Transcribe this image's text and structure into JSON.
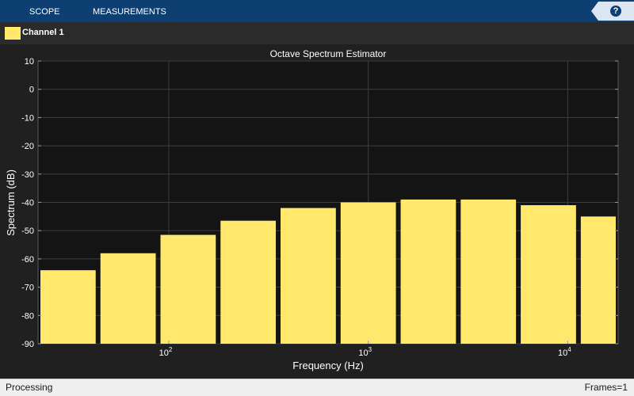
{
  "toolstrip": {
    "tabs": [
      "SCOPE",
      "MEASUREMENTS"
    ],
    "help_icon": "question-mark-icon",
    "help_label": "?"
  },
  "legend": {
    "channel_label": "Channel 1",
    "color": "#ffe86b"
  },
  "chart_data": {
    "type": "bar",
    "title": "Octave Spectrum Estimator",
    "xlabel": "Frequency (Hz)",
    "ylabel": "Spectrum (dB)",
    "xscale": "log",
    "ylim": [
      -90,
      10
    ],
    "yticks": [
      10,
      0,
      -10,
      -20,
      -30,
      -40,
      -50,
      -60,
      -70,
      -80,
      -90
    ],
    "xticks": [
      {
        "value": 100,
        "base": "10",
        "exp": "2"
      },
      {
        "value": 1000,
        "base": "10",
        "exp": "3"
      },
      {
        "value": 10000,
        "base": "10",
        "exp": "4"
      }
    ],
    "grid": true,
    "background": "#141414",
    "bar_color": "#ffe86b",
    "series": [
      {
        "center_hz": [
          31.25,
          62.5,
          125,
          250,
          500,
          1000,
          2000,
          4000,
          8000,
          16000
        ],
        "values": [
          -64,
          -58,
          -51.5,
          -46.5,
          -42,
          -40,
          -39,
          -39,
          -41,
          -45
        ]
      }
    ]
  },
  "status": {
    "left": "Processing",
    "right": "Frames=1"
  }
}
